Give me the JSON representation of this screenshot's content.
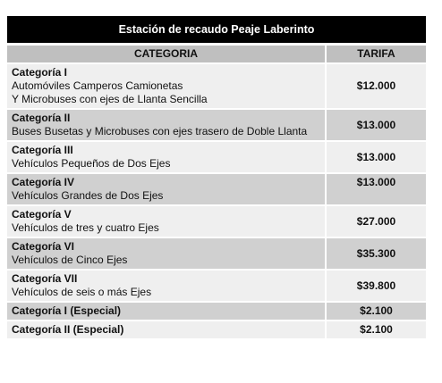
{
  "title": "Estación de recaudo Peaje Laberinto",
  "table": {
    "header": [
      "CATEGORIA",
      "TARIFA"
    ],
    "rows": [
      {
        "category": "Categoría I",
        "description": [
          "Automóviles Camperos Camionetas",
          "Y Microbuses con ejes de Llanta Sencilla"
        ],
        "fare": "$12.000"
      },
      {
        "category": "Categoría II",
        "description": [
          "Buses Busetas y Microbuses con ejes trasero de Doble Llanta"
        ],
        "fare": "$13.000"
      },
      {
        "category": "Categoría III",
        "description": [
          "Vehículos Pequeños de Dos Ejes"
        ],
        "fare": "$13.000"
      },
      {
        "category": "Categoría IV",
        "description": [
          "Vehículos Grandes de Dos Ejes"
        ],
        "fare": "$13.000"
      },
      {
        "category": "Categoría V",
        "description": [
          "Vehículos de tres y cuatro Ejes"
        ],
        "fare": "$27.000"
      },
      {
        "category": "Categoría VI",
        "description": [
          "Vehículos de Cinco Ejes"
        ],
        "fare": "$35.300"
      },
      {
        "category": "Categoría VII",
        "description": [
          "Vehículos de seis o más Ejes"
        ],
        "fare": "$39.800"
      },
      {
        "category": "Categoría I (Especial)",
        "description": [],
        "fare": "$2.100"
      },
      {
        "category": "Categoría II (Especial)",
        "description": [],
        "fare": "$2.100"
      }
    ]
  }
}
